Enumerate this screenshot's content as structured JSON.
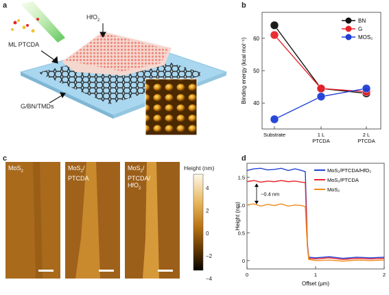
{
  "panels": {
    "a": {
      "label": "a",
      "hfo2": "HfO",
      "hfo2_sub": "2",
      "ml_ptcda": "ML PTCDA",
      "substrate": "G/BN/TMDs"
    },
    "b": {
      "label": "b"
    },
    "c": {
      "label": "c",
      "img1_title": "MoS",
      "img1_sub": "2",
      "img2_l1": "MoS",
      "img2_l1_sub": "2",
      "img2_l1_suffix": "/",
      "img2_l2": "PTCDA",
      "img3_l1": "MoS",
      "img3_l1_sub": "2",
      "img3_l1_suffix": "/",
      "img3_l2": "PTCDA/",
      "img3_l3": "HfO",
      "img3_l3_sub": "2",
      "colorbar_title": "Height (nm)",
      "colorbar_ticks": [
        "4",
        "2",
        "0",
        "−2",
        "−4"
      ]
    },
    "d": {
      "label": "d",
      "annotation": "~0.4 nm"
    }
  },
  "chart_data": [
    {
      "type": "line",
      "panel": "b",
      "ylabel": "Binding energy (kcal mol⁻¹)",
      "categories": [
        "Substrate",
        "1 L PTCDA",
        "2 L PTCDA"
      ],
      "ylim": [
        32,
        68
      ],
      "yticks": [
        40,
        50,
        60
      ],
      "legend_position": "top-right",
      "series": [
        {
          "name": "BN",
          "color": "#111111",
          "values": [
            64,
            44.5,
            43
          ]
        },
        {
          "name": "G",
          "color": "#e8232a",
          "values": [
            61,
            44.5,
            43.5
          ]
        },
        {
          "name": "MOS₂",
          "color": "#1f3fd6",
          "values": [
            35,
            42,
            44.5
          ]
        }
      ]
    },
    {
      "type": "line",
      "panel": "d",
      "xlabel": "Offset (μm)",
      "ylabel": "Height (nm)",
      "xlim": [
        0,
        2
      ],
      "ylim": [
        -0.15,
        1.75
      ],
      "xticks": [
        0,
        1,
        2
      ],
      "yticks": [
        0,
        0.5,
        1.0,
        1.5
      ],
      "legend_position": "top-right",
      "series": [
        {
          "name": "MoS₂/PTCDA/HfO₂",
          "color": "#1f3fd6",
          "x": [
            0,
            0.1,
            0.2,
            0.3,
            0.4,
            0.5,
            0.6,
            0.7,
            0.8,
            0.85,
            0.88,
            0.9,
            1.0,
            1.2,
            1.4,
            1.6,
            1.8,
            2.0
          ],
          "y": [
            1.62,
            1.65,
            1.66,
            1.63,
            1.64,
            1.66,
            1.62,
            1.65,
            1.62,
            1.6,
            0.3,
            0.06,
            0.05,
            0.07,
            0.04,
            0.06,
            0.05,
            0.06
          ]
        },
        {
          "name": "MoS₂/PTCDA",
          "color": "#e8232a",
          "x": [
            0,
            0.1,
            0.2,
            0.3,
            0.4,
            0.5,
            0.6,
            0.7,
            0.8,
            0.85,
            0.88,
            0.9,
            1.0,
            1.2,
            1.4,
            1.6,
            1.8,
            2.0
          ],
          "y": [
            1.42,
            1.44,
            1.41,
            1.43,
            1.42,
            1.44,
            1.42,
            1.43,
            1.41,
            1.4,
            0.3,
            0.04,
            0.03,
            0.05,
            0.02,
            0.04,
            0.03,
            0.04
          ]
        },
        {
          "name": "MoS₂",
          "color": "#f08a1c",
          "x": [
            0,
            0.1,
            0.2,
            0.3,
            0.4,
            0.5,
            0.6,
            0.7,
            0.8,
            0.85,
            0.88,
            0.9,
            1.0,
            1.2,
            1.4,
            1.6,
            1.8,
            2.0
          ],
          "y": [
            1.0,
            1.02,
            0.98,
            1.01,
            0.99,
            1.02,
            0.98,
            1.0,
            0.99,
            0.97,
            0.25,
            0.02,
            0.0,
            0.01,
            -0.01,
            0.01,
            0.0,
            0.01
          ]
        }
      ]
    }
  ]
}
